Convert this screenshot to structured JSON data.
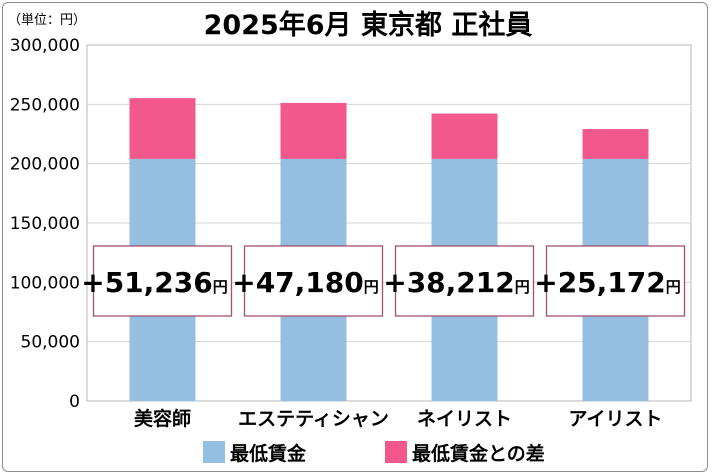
{
  "chart_data": {
    "type": "bar",
    "stacked": true,
    "title": "2025年6月 東京都 正社員",
    "unit_label": "（単位：円）",
    "categories": [
      "美容師",
      "エステティシャン",
      "ネイリスト",
      "アイリスト"
    ],
    "series": [
      {
        "name": "最低賃金",
        "values": [
          204000,
          204000,
          204000,
          204000
        ],
        "color": "#95bfe0"
      },
      {
        "name": "最低賃金との差",
        "values": [
          51236,
          47180,
          38212,
          25172
        ],
        "color": "#f2588b"
      }
    ],
    "difference_labels": [
      "+51,236",
      "+47,180",
      "+38,212",
      "+25,172"
    ],
    "difference_suffix": "円",
    "ylim": [
      0,
      300000
    ],
    "yticks": [
      "0",
      "50,000",
      "100,000",
      "150,000",
      "200,000",
      "250,000",
      "300,000"
    ],
    "grid": true,
    "legend_position": "bottom"
  }
}
